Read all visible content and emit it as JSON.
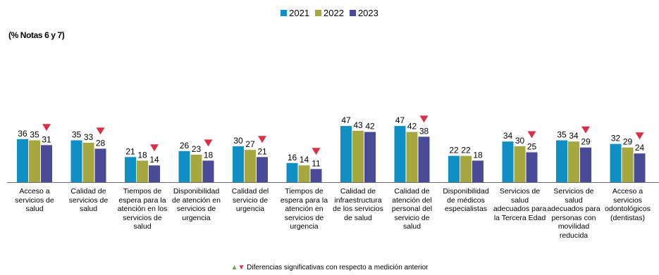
{
  "chart_data": {
    "type": "bar",
    "subtitle": "(% Notas 6 y 7)",
    "categories": [
      "Acceso a servicios de salud",
      "Calidad de servicios de salud",
      "Tiempos de espera para la atención en los servicios de salud",
      "Disponibilidad de atención en servicios de urgencia",
      "Calidad del servicio de urgencia",
      "Tiempos de espera para la atención en servicios de urgencia",
      "Calidad de infraestructura de los servicios de salud",
      "Calidad de atención del personal del servicio de salud",
      "Disponibilidad de médicos especialistas",
      "Servicios de salud adecuados para la Tercera Edad",
      "Servicios de salud adecuados para personas con movilidad reducida",
      "Acceso a servicios odontológicos (dentistas)"
    ],
    "series": [
      {
        "name": "2021",
        "color": "#0f8fc3",
        "values": [
          36,
          35,
          21,
          26,
          30,
          16,
          47,
          47,
          22,
          34,
          35,
          32
        ]
      },
      {
        "name": "2022",
        "color": "#a6a73e",
        "values": [
          35,
          33,
          18,
          23,
          27,
          14,
          43,
          42,
          22,
          30,
          34,
          29
        ]
      },
      {
        "name": "2023",
        "color": "#4a4b98",
        "values": [
          31,
          28,
          14,
          18,
          21,
          11,
          42,
          38,
          18,
          25,
          29,
          24
        ]
      }
    ],
    "significant_decrease": [
      true,
      true,
      true,
      true,
      true,
      true,
      false,
      true,
      false,
      true,
      true,
      true
    ],
    "marker_color": "#d9304a",
    "legend_position": "top-center",
    "grid": false
  },
  "footnote": "Diferencias significativas con respecto a medición anterior",
  "footnote_icons": [
    "triangle-up-green",
    "triangle-down-red"
  ]
}
